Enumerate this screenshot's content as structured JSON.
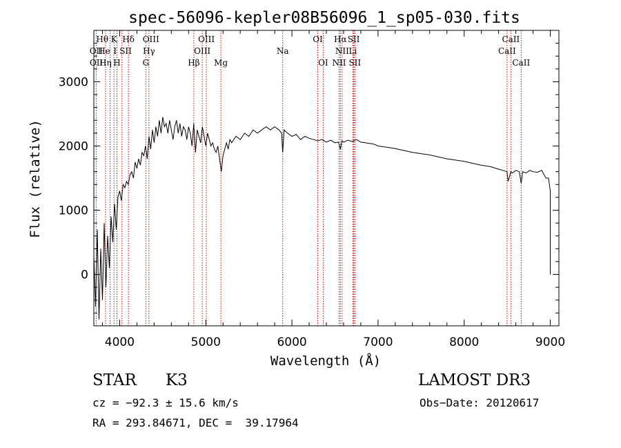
{
  "chart_data": {
    "type": "line",
    "title": "spec-56096-kepler08B56096_1_sp05-030.fits",
    "xlabel": "Wavelength (Å)",
    "ylabel": "Flux (relative)",
    "xlim": [
      3700,
      9100
    ],
    "ylim": [
      -800,
      3800
    ],
    "x_ticks": [
      4000,
      5000,
      6000,
      7000,
      8000,
      9000
    ],
    "y_ticks": [
      0,
      1000,
      2000,
      3000
    ],
    "x_tick_labels": [
      "4000",
      "5000",
      "6000",
      "7000",
      "8000",
      "9000"
    ],
    "y_tick_labels": [
      "0",
      "1000",
      "2000",
      "3000"
    ],
    "grid": false,
    "series": [
      {
        "name": "spectrum",
        "x": [
          3700,
          3720,
          3740,
          3760,
          3780,
          3800,
          3820,
          3840,
          3860,
          3880,
          3900,
          3920,
          3940,
          3960,
          3980,
          4000,
          4020,
          4040,
          4060,
          4080,
          4100,
          4120,
          4140,
          4160,
          4180,
          4200,
          4220,
          4240,
          4260,
          4280,
          4300,
          4320,
          4340,
          4360,
          4380,
          4400,
          4420,
          4440,
          4460,
          4480,
          4500,
          4520,
          4540,
          4560,
          4580,
          4600,
          4620,
          4640,
          4660,
          4680,
          4700,
          4720,
          4740,
          4760,
          4780,
          4800,
          4820,
          4840,
          4860,
          4880,
          4900,
          4920,
          4940,
          4960,
          4980,
          5000,
          5020,
          5040,
          5060,
          5080,
          5100,
          5120,
          5140,
          5160,
          5180,
          5200,
          5220,
          5240,
          5260,
          5280,
          5300,
          5350,
          5400,
          5450,
          5500,
          5550,
          5600,
          5650,
          5700,
          5750,
          5800,
          5850,
          5880,
          5893,
          5910,
          5950,
          6000,
          6050,
          6100,
          6150,
          6200,
          6250,
          6300,
          6350,
          6400,
          6450,
          6500,
          6540,
          6563,
          6580,
          6600,
          6650,
          6700,
          6750,
          6800,
          6850,
          6900,
          6950,
          7000,
          7100,
          7200,
          7300,
          7400,
          7500,
          7600,
          7700,
          7800,
          7900,
          8000,
          8100,
          8200,
          8300,
          8400,
          8498,
          8510,
          8542,
          8560,
          8600,
          8640,
          8662,
          8680,
          8720,
          8760,
          8800,
          8850,
          8900,
          8950,
          8980,
          9000,
          9000
        ],
        "y": [
          300,
          -500,
          700,
          -700,
          400,
          -400,
          800,
          -200,
          600,
          100,
          900,
          500,
          1100,
          700,
          1200,
          1300,
          1150,
          1400,
          1350,
          1450,
          1400,
          1550,
          1600,
          1500,
          1750,
          1650,
          1800,
          1700,
          1900,
          1850,
          2000,
          1800,
          2150,
          1950,
          2250,
          2050,
          2300,
          2150,
          2400,
          2200,
          2450,
          2300,
          2350,
          2200,
          2400,
          2250,
          2100,
          2300,
          2400,
          2200,
          2350,
          2150,
          2300,
          2250,
          2100,
          2300,
          2200,
          2000,
          2350,
          1900,
          2250,
          2150,
          2050,
          2300,
          2150,
          2000,
          2200,
          2100,
          2000,
          2050,
          1950,
          1900,
          2000,
          1800,
          1600,
          1850,
          1950,
          2050,
          1950,
          2100,
          2050,
          2150,
          2100,
          2200,
          2150,
          2250,
          2200,
          2250,
          2300,
          2250,
          2300,
          2250,
          2200,
          1900,
          2250,
          2200,
          2150,
          2180,
          2100,
          2150,
          2120,
          2100,
          2080,
          2100,
          2060,
          2090,
          2050,
          2060,
          1950,
          2080,
          2060,
          2090,
          2070,
          2100,
          2060,
          2050,
          2040,
          2030,
          2000,
          1980,
          1960,
          1930,
          1900,
          1880,
          1860,
          1830,
          1800,
          1780,
          1760,
          1730,
          1700,
          1680,
          1640,
          1600,
          1450,
          1600,
          1580,
          1620,
          1600,
          1420,
          1600,
          1580,
          1620,
          1600,
          1590,
          1620,
          1500,
          1500,
          1300,
          0
        ]
      }
    ],
    "annotations": {
      "line_wavelengths": [
        3727,
        3835,
        3889,
        3934,
        3968,
        4026,
        4102,
        4304,
        4340,
        4861,
        4959,
        5007,
        5175,
        5893,
        6300,
        6363,
        6548,
        6563,
        6583,
        6708,
        6717,
        6731,
        8498,
        8542,
        8662
      ],
      "labels": [
        {
          "text": "OII",
          "wavelength": 3727,
          "row": 2
        },
        {
          "text": "OII",
          "wavelength": 3729,
          "row": 3
        },
        {
          "text": "Hθ",
          "wavelength": 3798,
          "row": 1
        },
        {
          "text": "He",
          "wavelength": 3820,
          "row": 2
        },
        {
          "text": "Hη",
          "wavelength": 3835,
          "row": 3
        },
        {
          "text": "K",
          "wavelength": 3934,
          "row": 1
        },
        {
          "text": "I",
          "wavelength": 3946,
          "row": 2
        },
        {
          "text": "H",
          "wavelength": 3968,
          "row": 3
        },
        {
          "text": "SII",
          "wavelength": 4069,
          "row": 2
        },
        {
          "text": "Hδ",
          "wavelength": 4102,
          "row": 1
        },
        {
          "text": "OIII",
          "wavelength": 4363,
          "row": 1
        },
        {
          "text": "Hγ",
          "wavelength": 4340,
          "row": 2
        },
        {
          "text": "G",
          "wavelength": 4304,
          "row": 3
        },
        {
          "text": "Hβ",
          "wavelength": 4861,
          "row": 3
        },
        {
          "text": "OIII",
          "wavelength": 5007,
          "row": 1
        },
        {
          "text": "OIII",
          "wavelength": 4959,
          "row": 2
        },
        {
          "text": "Mg",
          "wavelength": 5175,
          "row": 3
        },
        {
          "text": "Na",
          "wavelength": 5893,
          "row": 2
        },
        {
          "text": "OI",
          "wavelength": 6300,
          "row": 1
        },
        {
          "text": "OI",
          "wavelength": 6363,
          "row": 3
        },
        {
          "text": "Hα",
          "wavelength": 6563,
          "row": 1
        },
        {
          "text": "SII",
          "wavelength": 6717,
          "row": 1
        },
        {
          "text": "NII",
          "wavelength": 6583,
          "row": 2
        },
        {
          "text": "Li",
          "wavelength": 6708,
          "row": 2
        },
        {
          "text": "NII",
          "wavelength": 6548,
          "row": 3
        },
        {
          "text": "SII",
          "wavelength": 6731,
          "row": 3
        },
        {
          "text": "CaII",
          "wavelength": 8542,
          "row": 1
        },
        {
          "text": "CaII",
          "wavelength": 8498,
          "row": 2
        },
        {
          "text": "CaII",
          "wavelength": 8662,
          "row": 3
        }
      ]
    }
  },
  "info": {
    "object_class": "STAR",
    "subclass": "K3",
    "survey": "LAMOST DR3",
    "redshift": "cz = −92.3 ± 15.6 km/s",
    "obs_date": "Obs−Date: 20120617",
    "coords": "RA = 293.84671, DEC =  39.17964"
  },
  "colors": {
    "spectrum": "#000000",
    "line_marker": "#cc0000",
    "text": "#000000"
  }
}
